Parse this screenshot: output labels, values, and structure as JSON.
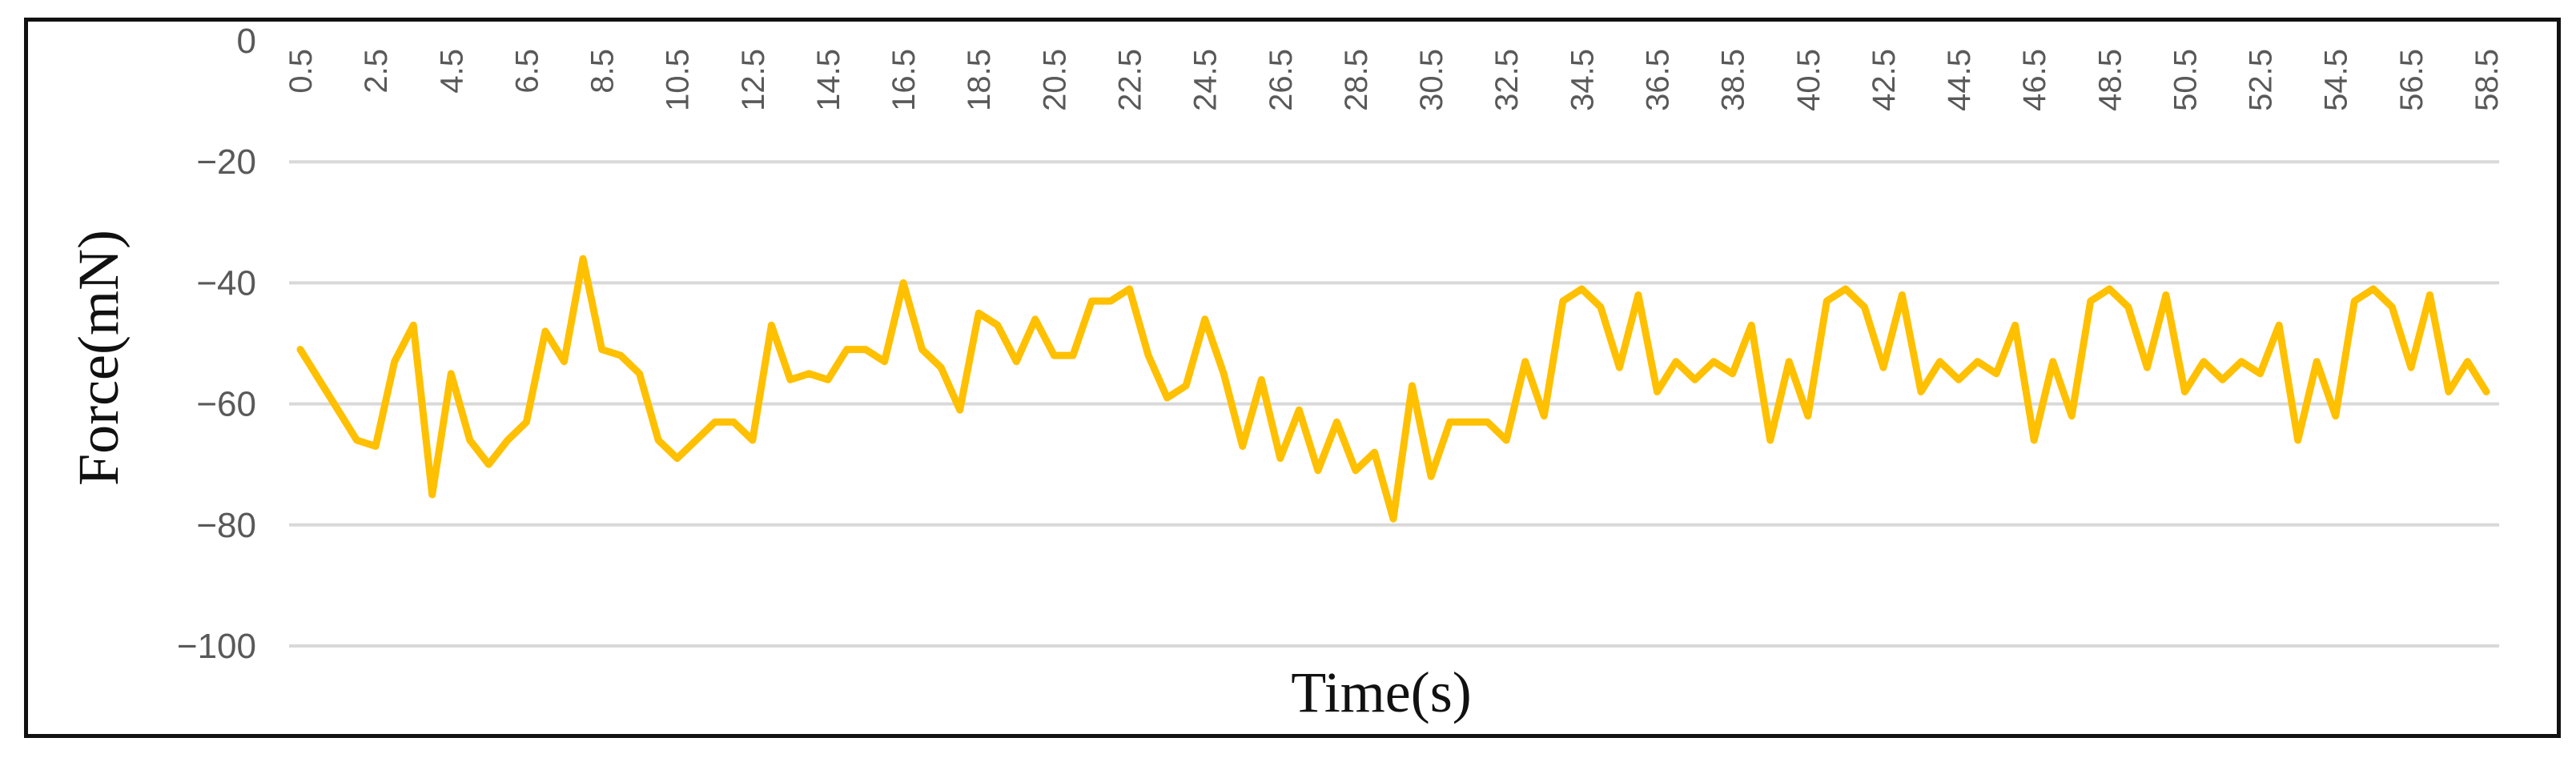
{
  "chart_data": {
    "type": "line",
    "title": "",
    "xlabel": "Time(s)",
    "ylabel": "Force(mN)",
    "ylim": [
      -100,
      0
    ],
    "yticks": [
      0,
      -20,
      -40,
      -60,
      -80,
      -100
    ],
    "ytick_labels": [
      "0",
      "−20",
      "−40",
      "−60",
      "−80",
      "−100"
    ],
    "xtick_labels": [
      "0.5",
      "2.5",
      "4.5",
      "6.5",
      "8.5",
      "10.5",
      "12.5",
      "14.5",
      "16.5",
      "18.5",
      "20.5",
      "22.5",
      "24.5",
      "26.5",
      "28.5",
      "30.5",
      "32.5",
      "34.5",
      "36.5",
      "38.5",
      "40.5",
      "42.5",
      "44.5",
      "46.5",
      "48.5",
      "50.5",
      "52.5",
      "54.5",
      "56.5",
      "58.5"
    ],
    "x_axis_position": "top",
    "grid": true,
    "line_color": "#FFC000",
    "x": [
      0.5,
      1,
      1.5,
      2,
      2.5,
      3,
      3.5,
      4,
      4.5,
      5,
      5.5,
      6,
      6.5,
      7,
      7.5,
      8,
      8.5,
      9,
      9.5,
      10,
      10.5,
      11,
      11.5,
      12,
      12.5,
      13,
      13.5,
      14,
      14.5,
      15,
      15.5,
      16,
      16.5,
      17,
      17.5,
      18,
      18.5,
      19,
      19.5,
      20,
      20.5,
      21,
      21.5,
      22,
      22.5,
      23,
      23.5,
      24,
      24.5,
      25,
      25.5,
      26,
      26.5,
      27,
      27.5,
      28,
      28.5,
      29,
      29.5,
      30,
      30.5,
      31,
      31.5,
      32,
      32.5,
      33,
      33.5,
      34,
      34.5,
      35,
      35.5,
      36,
      36.5,
      37,
      37.5,
      38,
      38.5,
      39,
      39.5,
      40,
      40.5,
      41,
      41.5,
      42,
      42.5,
      43,
      43.5,
      44,
      44.5,
      45,
      45.5,
      46,
      46.5,
      47,
      47.5,
      48,
      48.5,
      49,
      49.5,
      50,
      50.5,
      51,
      51.5,
      52,
      52.5,
      53,
      53.5,
      54,
      54.5,
      55,
      55.5,
      56,
      56.5,
      57,
      57.5,
      58,
      58.5
    ],
    "values": [
      -51,
      -56,
      -61,
      -66,
      -67,
      -53,
      -47,
      -75,
      -55,
      -66,
      -70,
      -66,
      -63,
      -48,
      -53,
      -36,
      -51,
      -52,
      -55,
      -66,
      -69,
      -66,
      -63,
      -63,
      -66,
      -47,
      -56,
      -55,
      -56,
      -51,
      -51,
      -53,
      -40,
      -51,
      -54,
      -61,
      -45,
      -47,
      -53,
      -46,
      -52,
      -52,
      -43,
      -43,
      -41,
      -52,
      -59,
      -57,
      -46,
      -55,
      -67,
      -56,
      -69,
      -61,
      -71,
      -63,
      -71,
      -68,
      -79,
      -57,
      -72,
      -63,
      -63,
      -63,
      -66,
      -53,
      -62,
      -43,
      -41,
      -44,
      -54,
      -42,
      -58,
      -53,
      -56,
      -53,
      -55,
      -47,
      -66,
      -53,
      -62,
      -43,
      -41,
      -44,
      -54,
      -42,
      -58,
      -53,
      -56,
      -53,
      -55,
      -47,
      -66,
      -53,
      -62,
      -43,
      -41,
      -44,
      -54,
      -42,
      -58,
      -53,
      -56,
      -53,
      -55,
      -47,
      -66,
      -53,
      -62,
      -43,
      -41,
      -44,
      -54,
      -42,
      -58,
      -53,
      -58
    ]
  }
}
